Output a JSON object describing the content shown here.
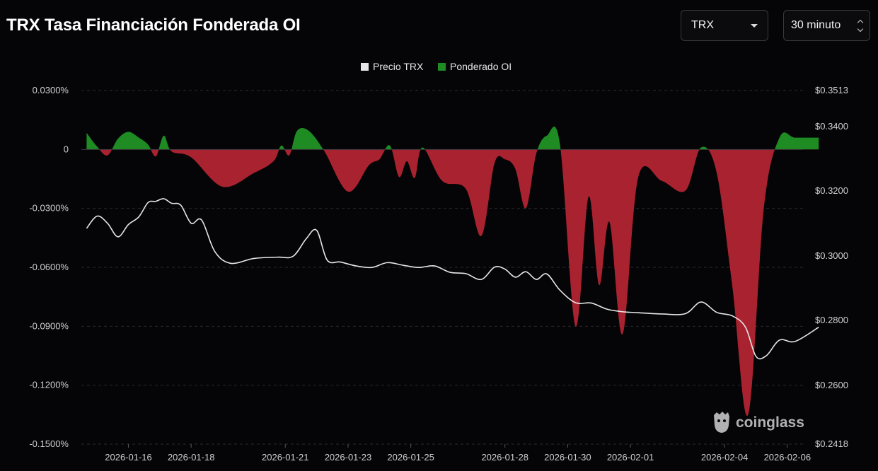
{
  "header": {
    "title": "TRX Tasa Financiación Fonderada OI",
    "symbol_select": "TRX",
    "interval_select": "30 minuto"
  },
  "watermark": "coinglass",
  "colors": {
    "price": "#e6e6e6",
    "positive": "#1e8c23",
    "negative": "#a9222f",
    "background": "#050507"
  },
  "chart_data": {
    "type": "area",
    "legend": [
      "Precio TRX",
      "Ponderado OI"
    ],
    "x_tick_labels": [
      "2026-01-16",
      "2026-01-18",
      "2026-01-21",
      "2026-01-23",
      "2026-01-25",
      "2026-01-28",
      "2026-01-30",
      "2026-02-01",
      "2026-02-04",
      "2026-02-06"
    ],
    "y_left_ticks": [
      "0.0300%",
      "0",
      "-0.0300%",
      "-0.0600%",
      "-0.0900%",
      "-0.1200%",
      "-0.1500%"
    ],
    "y_right_ticks": [
      "$0.3513",
      "$0.3400",
      "$0.3200",
      "$0.3000",
      "$0.2800",
      "$0.2600",
      "$0.2418"
    ],
    "y_left_range": [
      -0.15,
      0.03
    ],
    "y_right_range": [
      0.2418,
      0.3513
    ],
    "grid": "horizontal dashed",
    "legend_position": "top-center",
    "series": [
      {
        "name": "Precio TRX",
        "axis": "right",
        "points": [
          [
            "2026-01-15",
            0.3086
          ],
          [
            "2026-01-15",
            0.3124
          ],
          [
            "2026-01-15",
            0.3102
          ],
          [
            "2026-01-16",
            0.306
          ],
          [
            "2026-01-16",
            0.3098
          ],
          [
            "2026-01-16",
            0.3122
          ],
          [
            "2026-01-17",
            0.3166
          ],
          [
            "2026-01-17",
            0.317
          ],
          [
            "2026-01-17",
            0.3178
          ],
          [
            "2026-01-17",
            0.3164
          ],
          [
            "2026-01-18",
            0.3158
          ],
          [
            "2026-01-18",
            0.3102
          ],
          [
            "2026-01-18",
            0.3112
          ],
          [
            "2026-01-19",
            0.3015
          ],
          [
            "2026-01-19",
            0.2978
          ],
          [
            "2026-01-20",
            0.2993
          ],
          [
            "2026-01-21",
            0.2997
          ],
          [
            "2026-01-21",
            0.3
          ],
          [
            "2026-01-22",
            0.3054
          ],
          [
            "2026-01-22",
            0.308
          ],
          [
            "2026-01-22",
            0.2988
          ],
          [
            "2026-01-23",
            0.2982
          ],
          [
            "2026-01-23",
            0.297
          ],
          [
            "2026-01-24",
            0.2965
          ],
          [
            "2026-01-24",
            0.298
          ],
          [
            "2026-01-25",
            0.2972
          ],
          [
            "2026-01-25",
            0.2965
          ],
          [
            "2026-01-26",
            0.297
          ],
          [
            "2026-01-26",
            0.295
          ],
          [
            "2026-01-27",
            0.2946
          ],
          [
            "2026-01-27",
            0.2928
          ],
          [
            "2026-01-28",
            0.2966
          ],
          [
            "2026-01-28",
            0.296
          ],
          [
            "2026-01-28",
            0.2935
          ],
          [
            "2026-01-29",
            0.2952
          ],
          [
            "2026-01-29",
            0.2928
          ],
          [
            "2026-01-29",
            0.2945
          ],
          [
            "2026-01-30",
            0.2895
          ],
          [
            "2026-01-30",
            0.2856
          ],
          [
            "2026-01-31",
            0.2855
          ],
          [
            "2026-01-31",
            0.2836
          ],
          [
            "2026-02-01",
            0.2828
          ],
          [
            "2026-02-01",
            0.2825
          ],
          [
            "2026-02-02",
            0.2821
          ],
          [
            "2026-02-03",
            0.2822
          ],
          [
            "2026-02-03",
            0.2858
          ],
          [
            "2026-02-04",
            0.2826
          ],
          [
            "2026-02-04",
            0.2815
          ],
          [
            "2026-02-05",
            0.278
          ],
          [
            "2026-02-05",
            0.269
          ],
          [
            "2026-02-05",
            0.2692
          ],
          [
            "2026-02-06",
            0.274
          ],
          [
            "2026-02-06",
            0.2736
          ],
          [
            "2026-02-07",
            0.278
          ]
        ]
      },
      {
        "name": "Ponderado OI",
        "axis": "left",
        "points": [
          [
            "2026-01-15",
            0.0085
          ],
          [
            "2026-01-15",
            0.0015
          ],
          [
            "2026-01-15",
            -0.003
          ],
          [
            "2026-01-16",
            0.0055
          ],
          [
            "2026-01-16",
            0.009
          ],
          [
            "2026-01-16",
            0.006
          ],
          [
            "2026-01-17",
            0.0025
          ],
          [
            "2026-01-17",
            -0.0035
          ],
          [
            "2026-01-17",
            0.007
          ],
          [
            "2026-01-17",
            -0.001
          ],
          [
            "2026-01-18",
            -0.004
          ],
          [
            "2026-01-19",
            -0.019
          ],
          [
            "2026-01-20",
            -0.012
          ],
          [
            "2026-01-21",
            -0.006
          ],
          [
            "2026-01-21",
            0.002
          ],
          [
            "2026-01-21",
            -0.003
          ],
          [
            "2026-01-21",
            0.0095
          ],
          [
            "2026-01-22",
            0.0095
          ],
          [
            "2026-01-22",
            -0.001
          ],
          [
            "2026-01-23",
            -0.0215
          ],
          [
            "2026-01-24",
            -0.008
          ],
          [
            "2026-01-24",
            -0.005
          ],
          [
            "2026-01-24",
            0.002
          ],
          [
            "2026-01-25",
            -0.014
          ],
          [
            "2026-01-25",
            -0.006
          ],
          [
            "2026-01-25",
            -0.0145
          ],
          [
            "2026-01-25",
            0.001
          ],
          [
            "2026-01-26",
            -0.016
          ],
          [
            "2026-01-27",
            -0.02
          ],
          [
            "2026-01-27",
            -0.044
          ],
          [
            "2026-01-28",
            -0.007
          ],
          [
            "2026-01-28",
            -0.005
          ],
          [
            "2026-01-28",
            -0.01
          ],
          [
            "2026-01-29",
            -0.03
          ],
          [
            "2026-01-29",
            -0.002
          ],
          [
            "2026-01-29",
            0.007
          ],
          [
            "2026-01-30",
            0.003
          ],
          [
            "2026-01-30",
            -0.09
          ],
          [
            "2026-01-31",
            -0.024
          ],
          [
            "2026-01-31",
            -0.069
          ],
          [
            "2026-01-31",
            -0.037
          ],
          [
            "2026-02-01",
            -0.094
          ],
          [
            "2026-02-01",
            -0.014
          ],
          [
            "2026-02-02",
            -0.016
          ],
          [
            "2026-02-03",
            -0.021
          ],
          [
            "2026-02-03",
            0.001
          ],
          [
            "2026-02-04",
            -0.012
          ],
          [
            "2026-02-04",
            -0.07
          ],
          [
            "2026-02-05",
            -0.135
          ],
          [
            "2026-02-05",
            -0.03
          ],
          [
            "2026-02-06",
            0.006
          ],
          [
            "2026-02-06",
            0.006
          ],
          [
            "2026-02-07",
            0.006
          ]
        ]
      }
    ]
  }
}
